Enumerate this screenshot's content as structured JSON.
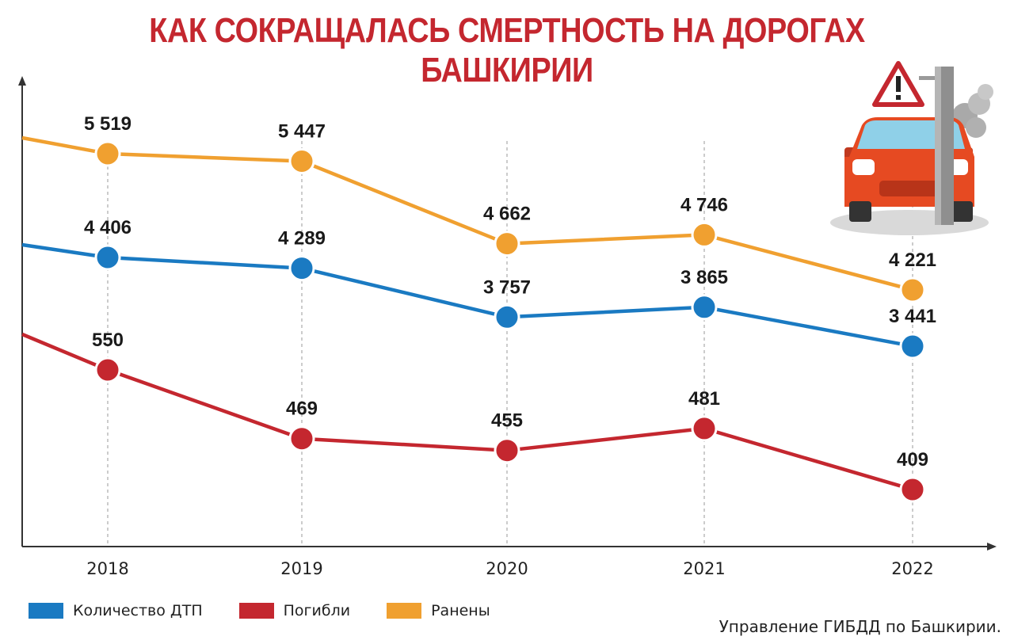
{
  "title": "КАК СОКРАЩАЛАСЬ СМЕРТНОСТЬ НА ДОРОГАХ БАШКИРИИ",
  "source": "Управление ГИБДД по Башкирии.",
  "colors": {
    "title": "#c4272f",
    "accidents": "#1a7ac2",
    "deaths": "#c4272f",
    "injured": "#f0a030"
  },
  "legend": [
    {
      "label": "Количество ДТП",
      "color": "#1a7ac2"
    },
    {
      "label": "Погибли",
      "color": "#c4272f"
    },
    {
      "label": "Ранены",
      "color": "#f0a030"
    }
  ],
  "illustration_icon": "car-crash-icon",
  "chart_data": {
    "type": "line",
    "x": [
      "2018",
      "2019",
      "2020",
      "2021",
      "2022"
    ],
    "series": [
      {
        "name": "Ранены",
        "color": "#f0a030",
        "values": [
          5519,
          5447,
          4662,
          4746,
          4221
        ],
        "labels": [
          "5 519",
          "5 447",
          "4 662",
          "4 746",
          "4 221"
        ]
      },
      {
        "name": "Количество ДТП",
        "color": "#1a7ac2",
        "values": [
          4406,
          4289,
          3757,
          3865,
          3441
        ],
        "labels": [
          "4 406",
          "4 289",
          "3 757",
          "3 865",
          "3 441"
        ]
      },
      {
        "name": "Погибли",
        "color": "#c4272f",
        "values": [
          550,
          469,
          455,
          481,
          409
        ],
        "labels": [
          "550",
          "469",
          "455",
          "481",
          "409"
        ]
      }
    ],
    "grid": "dashed vertical lines at each year",
    "legend_position": "bottom-left"
  }
}
